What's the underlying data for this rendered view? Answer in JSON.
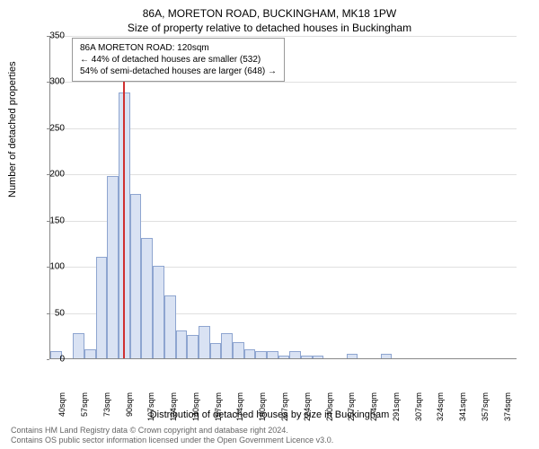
{
  "title": "86A, MORETON ROAD, BUCKINGHAM, MK18 1PW",
  "subtitle": "Size of property relative to detached houses in Buckingham",
  "info_box": {
    "line1": "86A MORETON ROAD: 120sqm",
    "line2": "← 44% of detached houses are smaller (532)",
    "line3": "54% of semi-detached houses are larger (648) →"
  },
  "y_axis_label": "Number of detached properties",
  "x_axis_label": "Distribution of detached houses by size in Buckingham",
  "footer_line1": "Contains HM Land Registry data © Crown copyright and database right 2024.",
  "footer_line2": "Contains OS public sector information licensed under the Open Government Licence v3.0.",
  "chart": {
    "type": "bar",
    "ylim": [
      0,
      350
    ],
    "ytick_step": 50,
    "y_ticks": [
      0,
      50,
      100,
      150,
      200,
      250,
      300,
      350
    ],
    "x_labels": [
      "40sqm",
      "57sqm",
      "73sqm",
      "90sqm",
      "107sqm",
      "124sqm",
      "140sqm",
      "157sqm",
      "174sqm",
      "190sqm",
      "207sqm",
      "224sqm",
      "240sqm",
      "257sqm",
      "274sqm",
      "291sqm",
      "307sqm",
      "324sqm",
      "341sqm",
      "357sqm",
      "374sqm"
    ],
    "values": [
      8,
      0,
      27,
      10,
      110,
      197,
      288,
      178,
      130,
      100,
      68,
      30,
      25,
      35,
      17,
      27,
      18,
      10,
      8,
      8,
      3,
      8,
      3,
      3,
      0,
      0,
      5,
      0,
      0,
      5,
      0,
      0,
      0,
      0,
      0,
      0,
      0,
      0,
      0,
      0,
      0
    ],
    "bar_color": "#d9e2f3",
    "bar_border_color": "#8ea5d0",
    "bar_width_ratio": 1.0,
    "background_color": "#ffffff",
    "grid_color": "#e0e0e0",
    "axis_color": "#888888",
    "marker": {
      "position_index": 6,
      "color": "#d03030",
      "height_value": 300
    },
    "title_fontsize": 12,
    "label_fontsize": 11,
    "tick_fontsize": 10
  }
}
